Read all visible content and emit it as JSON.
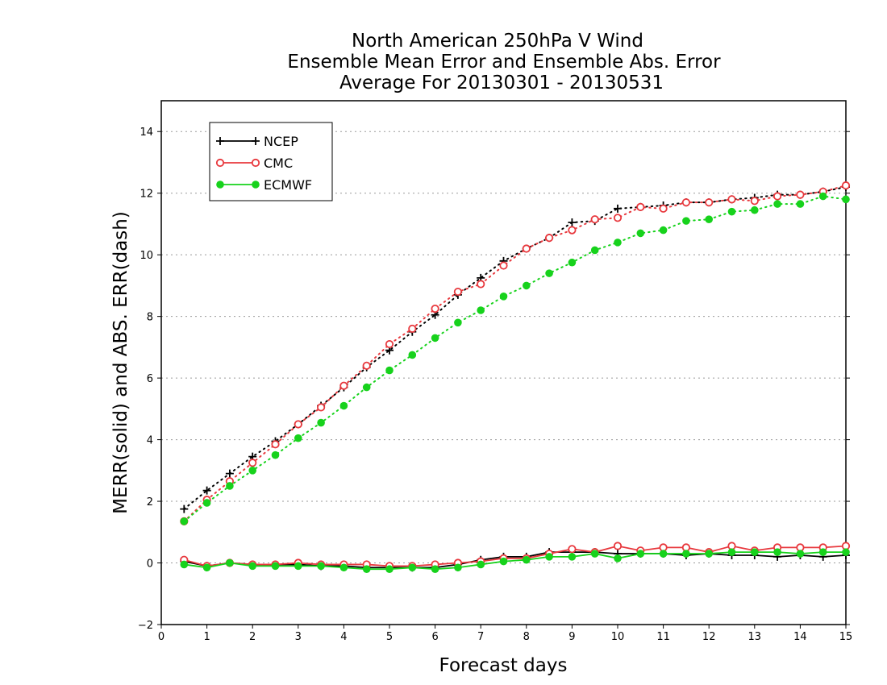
{
  "chart_data": {
    "type": "line",
    "title": [
      "North American 250hPa V Wind",
      "Ensemble Mean Error and Ensemble Abs. Error",
      "Average For 20130301 - 20130531"
    ],
    "xlabel": "Forecast days",
    "ylabel": "MERR(solid) and ABS. ERR(dash)",
    "xlim": [
      0,
      15
    ],
    "ylim": [
      -2,
      15
    ],
    "xticks": [
      0,
      1,
      2,
      3,
      4,
      5,
      6,
      7,
      8,
      9,
      10,
      11,
      12,
      13,
      14,
      15
    ],
    "yticks": [
      -2,
      0,
      2,
      4,
      6,
      8,
      10,
      12,
      14
    ],
    "grid": "horizontal dotted",
    "legend_position": "top-left",
    "x": [
      0.5,
      1,
      1.5,
      2,
      2.5,
      3,
      3.5,
      4,
      4.5,
      5,
      5.5,
      6,
      6.5,
      7,
      7.5,
      8,
      8.5,
      9,
      9.5,
      10,
      10.5,
      11,
      11.5,
      12,
      12.5,
      13,
      13.5,
      14,
      14.5,
      15
    ],
    "series": [
      {
        "name": "NCEP",
        "color": "#000000",
        "marker": "plus",
        "merr": [
          0.05,
          -0.1,
          0.0,
          -0.05,
          -0.05,
          -0.05,
          -0.1,
          -0.1,
          -0.15,
          -0.15,
          -0.15,
          -0.15,
          -0.05,
          0.1,
          0.2,
          0.2,
          0.35,
          0.35,
          0.35,
          0.3,
          0.3,
          0.3,
          0.25,
          0.3,
          0.25,
          0.25,
          0.2,
          0.25,
          0.2,
          0.25
        ],
        "abs_err": [
          1.75,
          2.35,
          2.9,
          3.45,
          3.95,
          4.5,
          5.1,
          5.7,
          6.35,
          6.9,
          7.5,
          8.05,
          8.7,
          9.25,
          9.8,
          10.2,
          10.55,
          11.05,
          11.1,
          11.5,
          11.55,
          11.6,
          11.7,
          11.7,
          11.8,
          11.85,
          11.95,
          11.95,
          12.05,
          12.2
        ]
      },
      {
        "name": "CMC",
        "color": "#e8383d",
        "marker": "open-circle",
        "merr": [
          0.1,
          -0.1,
          0.0,
          -0.05,
          -0.05,
          0.0,
          -0.05,
          -0.05,
          -0.05,
          -0.1,
          -0.1,
          -0.05,
          0.0,
          0.05,
          0.15,
          0.15,
          0.3,
          0.45,
          0.35,
          0.55,
          0.4,
          0.5,
          0.5,
          0.35,
          0.55,
          0.4,
          0.5,
          0.5,
          0.5,
          0.55
        ],
        "abs_err": [
          1.35,
          2.05,
          2.65,
          3.25,
          3.85,
          4.5,
          5.05,
          5.75,
          6.4,
          7.1,
          7.6,
          8.25,
          8.8,
          9.05,
          9.65,
          10.2,
          10.55,
          10.8,
          11.15,
          11.2,
          11.55,
          11.5,
          11.7,
          11.7,
          11.8,
          11.75,
          11.9,
          11.95,
          12.05,
          12.25
        ]
      },
      {
        "name": "ECMWF",
        "color": "#17d21c",
        "marker": "filled-circle",
        "merr": [
          -0.05,
          -0.15,
          0.0,
          -0.1,
          -0.1,
          -0.1,
          -0.1,
          -0.15,
          -0.2,
          -0.2,
          -0.15,
          -0.2,
          -0.15,
          -0.05,
          0.05,
          0.1,
          0.2,
          0.2,
          0.3,
          0.15,
          0.3,
          0.3,
          0.3,
          0.3,
          0.35,
          0.35,
          0.35,
          0.3,
          0.35,
          0.35
        ],
        "abs_err": [
          1.35,
          1.95,
          2.5,
          3.0,
          3.5,
          4.05,
          4.55,
          5.1,
          5.7,
          6.25,
          6.75,
          7.3,
          7.8,
          8.2,
          8.65,
          9.0,
          9.4,
          9.75,
          10.15,
          10.4,
          10.7,
          10.8,
          11.1,
          11.15,
          11.4,
          11.45,
          11.65,
          11.65,
          11.9,
          11.8
        ]
      }
    ]
  }
}
